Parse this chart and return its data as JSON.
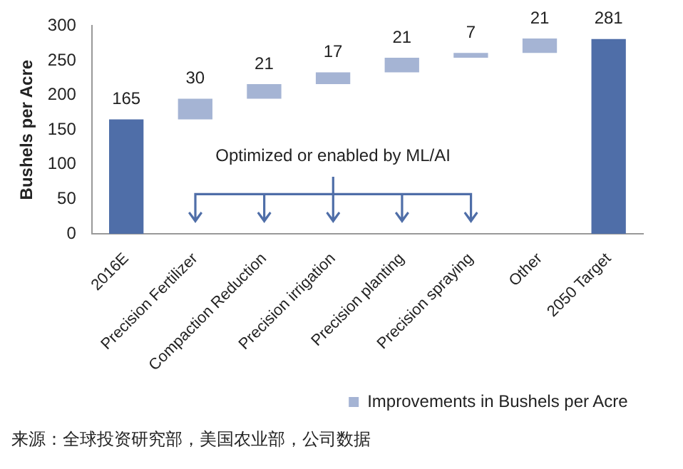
{
  "chart_data": {
    "type": "bar",
    "ylabel": "Bushels per Acre",
    "categories": [
      "2016E",
      "Precision Fertilizer",
      "Compaction Reduction",
      "Precision irrigation",
      "Precision planting",
      "Precision spraying",
      "Other",
      "2050 Target"
    ],
    "series": [
      {
        "name": "Improvements in Bushels per Acre",
        "color": "#a5b4d4",
        "colors": [
          "#4f6ea8",
          "#a5b4d4",
          "#a5b4d4",
          "#a5b4d4",
          "#a5b4d4",
          "#a5b4d4",
          "#a5b4d4",
          "#4f6ea8"
        ],
        "values": [
          165,
          30,
          21,
          17,
          21,
          7,
          21,
          281
        ],
        "base": [
          0,
          165,
          195,
          216,
          233,
          254,
          261,
          0
        ]
      }
    ],
    "ylim": [
      0,
      300
    ],
    "yticks": [
      0,
      50,
      100,
      150,
      200,
      250,
      300
    ],
    "grid": false,
    "legend": "bottom right",
    "data_labels": true,
    "annotations": [
      "Optimized or enabled by ML/AI",
      "来源：全球投资研究部，美国农业部，公司数据"
    ]
  }
}
